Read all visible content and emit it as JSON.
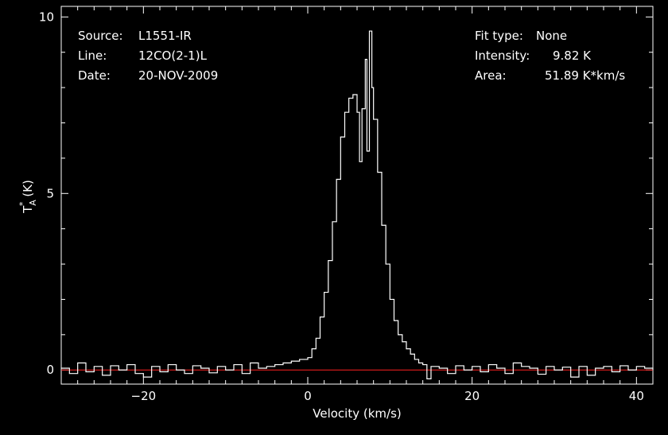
{
  "info_left": [
    {
      "label": "Source:",
      "value": "L1551-IR"
    },
    {
      "label": "Line:",
      "value": "12CO(2-1)L"
    },
    {
      "label": "Date:",
      "value": "20-NOV-2009"
    }
  ],
  "info_right": [
    {
      "label": "Fit type:",
      "value": "None"
    },
    {
      "label": "Intensity:",
      "value": "9.82 K"
    },
    {
      "label": "Area:",
      "value": "51.89 K*km/s"
    }
  ],
  "chart_data": {
    "type": "line",
    "title": "",
    "xlabel": "Velocity (km/s)",
    "ylabel": "T",
    "ylabel_sup": "*",
    "ylabel_sub": "A",
    "ylabel_unit": "(K)",
    "xlim": [
      -30,
      42
    ],
    "ylim": [
      -0.4,
      10.3
    ],
    "xticks": [
      -20,
      0,
      20,
      40
    ],
    "yticks": [
      0,
      5,
      10
    ],
    "xtick_labels": [
      "−20",
      "0",
      "20",
      "40"
    ],
    "ytick_labels": [
      "0",
      "5",
      "10"
    ],
    "grid": false,
    "series": [
      {
        "name": "",
        "color": "#ffffff",
        "style": "steps",
        "x": [
          -30,
          -29,
          -28,
          -27,
          -26,
          -25,
          -24,
          -23,
          -22,
          -21,
          -20,
          -19,
          -18,
          -17,
          -16,
          -15,
          -14,
          -13,
          -12,
          -11,
          -10,
          -9,
          -8,
          -7,
          -6,
          -5,
          -4,
          -3,
          -2,
          -1,
          0,
          0.5,
          1,
          1.5,
          2,
          2.5,
          3,
          3.5,
          4,
          4.5,
          5,
          5.5,
          6,
          6.3,
          6.6,
          7,
          7.2,
          7.5,
          7.8,
          8,
          8.5,
          9,
          9.5,
          10,
          10.5,
          11,
          11.5,
          12,
          12.5,
          13,
          13.5,
          14,
          14.5,
          15,
          16,
          17,
          18,
          19,
          20,
          21,
          22,
          23,
          24,
          25,
          26,
          27,
          28,
          29,
          30,
          31,
          32,
          33,
          34,
          35,
          36,
          37,
          38,
          39,
          40,
          41,
          42
        ],
        "y": [
          0.05,
          -0.1,
          0.2,
          -0.05,
          0.1,
          -0.15,
          0.12,
          0.0,
          0.15,
          -0.1,
          -0.2,
          0.1,
          -0.05,
          0.15,
          0.0,
          -0.1,
          0.12,
          0.05,
          -0.08,
          0.1,
          0.0,
          0.15,
          -0.1,
          0.2,
          0.05,
          0.1,
          0.15,
          0.2,
          0.25,
          0.3,
          0.35,
          0.6,
          0.9,
          1.5,
          2.2,
          3.1,
          4.2,
          5.4,
          6.6,
          7.3,
          7.7,
          7.8,
          7.3,
          5.9,
          7.4,
          8.8,
          6.2,
          9.6,
          8.0,
          7.1,
          5.6,
          4.1,
          3.0,
          2.0,
          1.4,
          1.0,
          0.8,
          0.6,
          0.45,
          0.3,
          0.2,
          0.15,
          -0.25,
          0.1,
          0.05,
          -0.1,
          0.12,
          0.0,
          0.1,
          -0.05,
          0.15,
          0.05,
          -0.1,
          0.2,
          0.1,
          0.05,
          -0.12,
          0.1,
          0.0,
          0.08,
          -0.2,
          0.1,
          -0.15,
          0.05,
          0.1,
          -0.05,
          0.12,
          0.0,
          0.1,
          0.05,
          0.0
        ]
      }
    ],
    "baseline": {
      "y": 0,
      "color": "#ff2020"
    }
  }
}
